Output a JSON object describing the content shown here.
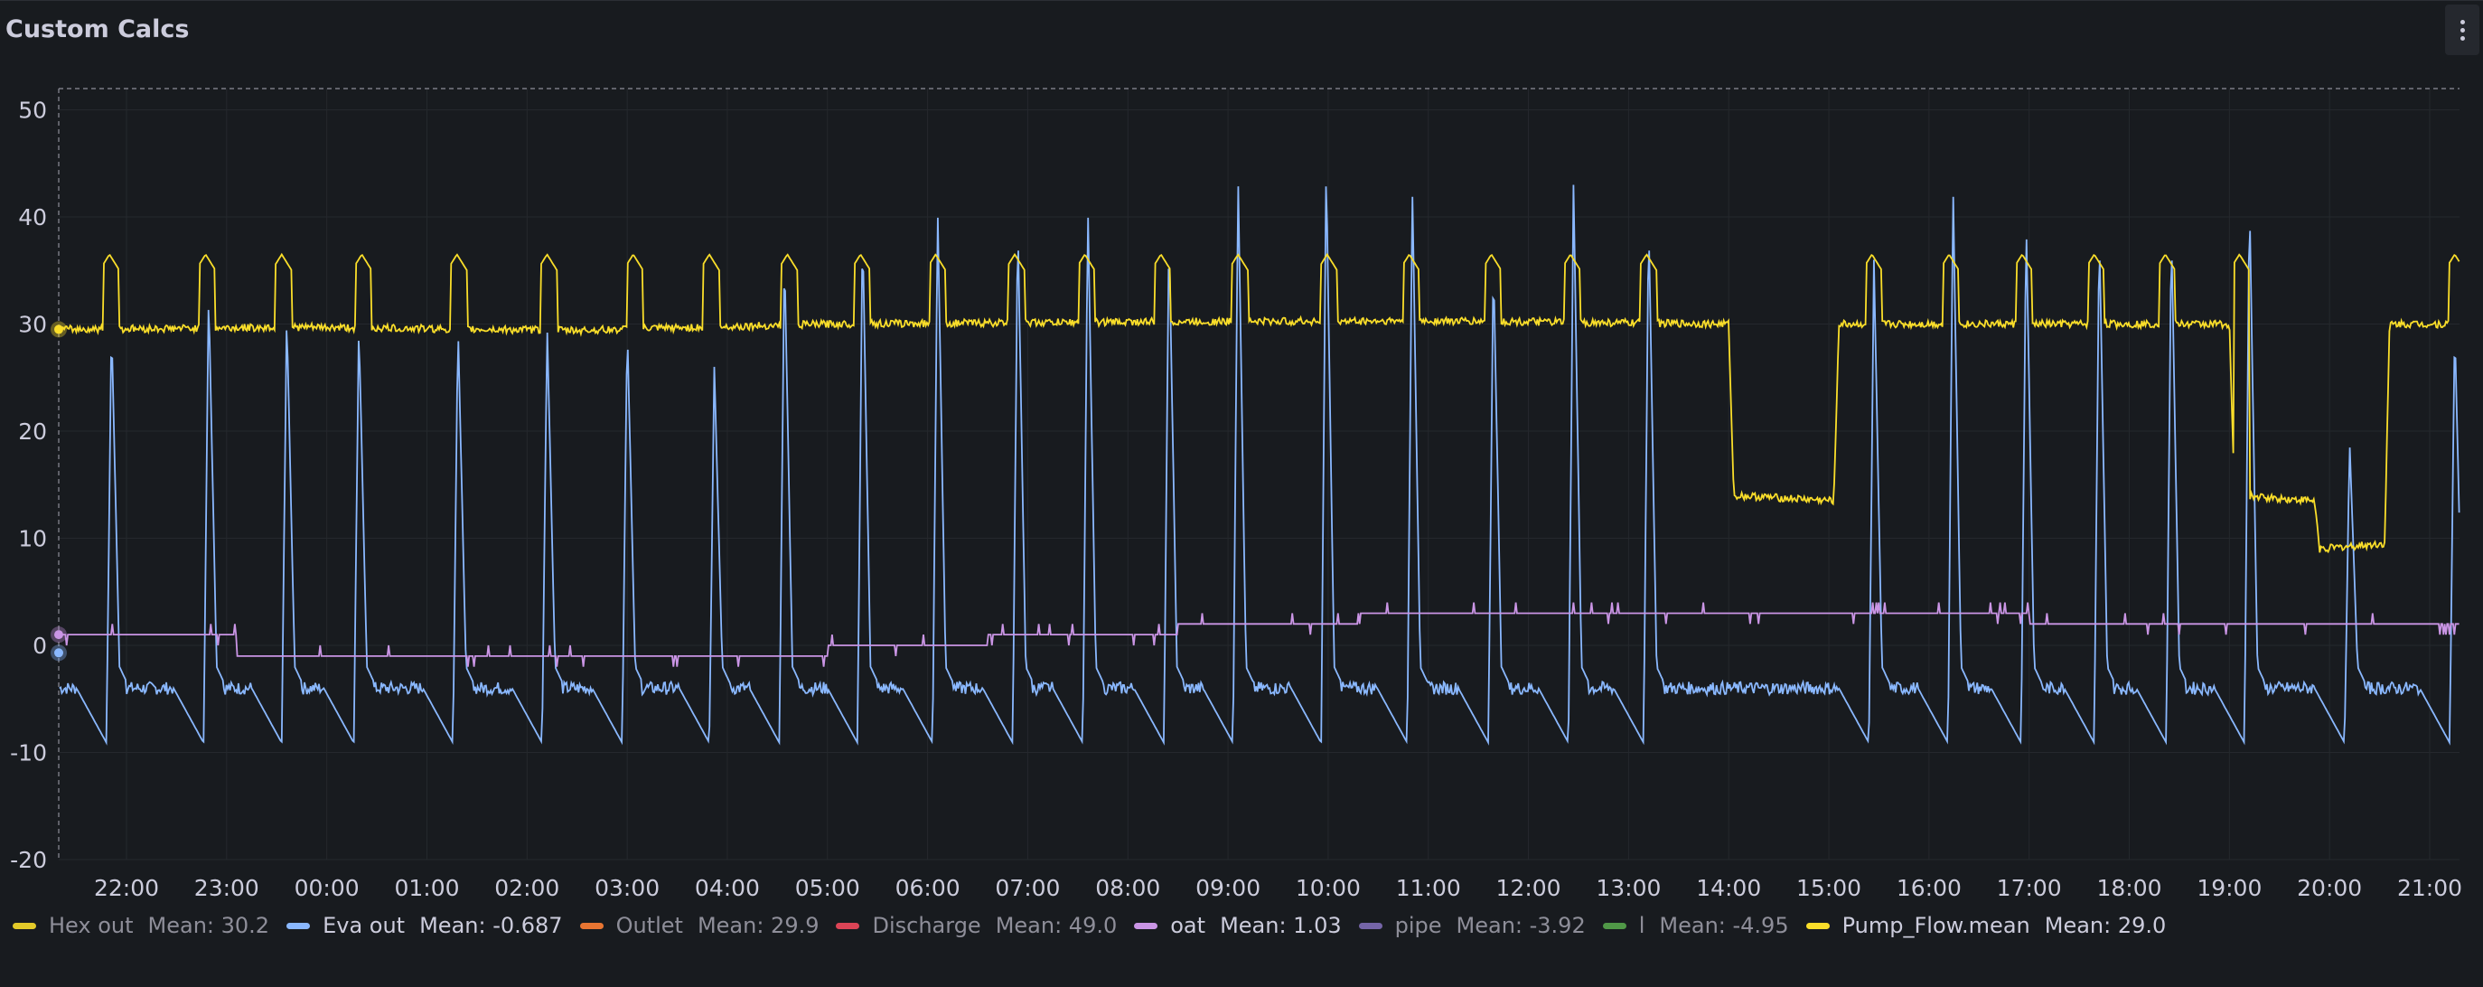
{
  "panel": {
    "title": "Custom Calcs"
  },
  "chart_data": {
    "type": "line",
    "title": "Custom Calcs",
    "xlabel": "",
    "ylabel": "",
    "x_ticks": [
      "22:00",
      "23:00",
      "00:00",
      "01:00",
      "02:00",
      "03:00",
      "04:00",
      "05:00",
      "06:00",
      "07:00",
      "08:00",
      "09:00",
      "10:00",
      "11:00",
      "12:00",
      "13:00",
      "14:00",
      "15:00",
      "16:00",
      "17:00",
      "18:00",
      "19:00",
      "20:00",
      "21:00"
    ],
    "y_ticks": [
      50,
      40,
      30,
      20,
      10,
      0,
      -10,
      -20
    ],
    "ylim": [
      -20,
      52
    ],
    "xlim_hours": [
      21.33,
      45.3
    ],
    "grid": true,
    "legend_position": "bottom",
    "legend": [
      {
        "name": "Hex out",
        "stat": "Mean: 30.2",
        "color": "#fade2a",
        "dim": true
      },
      {
        "name": "Eva out",
        "stat": "Mean: -0.687",
        "color": "#8ab8ff",
        "dim": false
      },
      {
        "name": "Outlet",
        "stat": "Mean: 29.9",
        "color": "#ff7f34",
        "dim": true
      },
      {
        "name": "Discharge",
        "stat": "Mean: 49.0",
        "color": "#f2495c",
        "dim": true
      },
      {
        "name": "oat",
        "stat": "Mean: 1.03",
        "color": "#ca95e5",
        "dim": false
      },
      {
        "name": "pipe",
        "stat": "Mean: -3.92",
        "color": "#806eb7",
        "dim": true
      },
      {
        "name": "l",
        "stat": "Mean: -4.95",
        "color": "#56a64b",
        "dim": true
      },
      {
        "name": "Pump_Flow.mean",
        "stat": "Mean: 29.0",
        "color": "#fade2a",
        "dim": false
      }
    ],
    "series": [
      {
        "name": "Pump_Flow.mean",
        "color": "#fade2a",
        "baseline": [
          {
            "x": 21.33,
            "y": 29.5
          },
          {
            "x": 23.8,
            "y": 29.7
          },
          {
            "x": 26.5,
            "y": 29.4
          },
          {
            "x": 29.0,
            "y": 30.0
          },
          {
            "x": 32.0,
            "y": 30.2
          },
          {
            "x": 35.0,
            "y": 30.3
          },
          {
            "x": 38.0,
            "y": 30.0
          },
          {
            "x": 38.05,
            "y": 14.0
          },
          {
            "x": 39.05,
            "y": 13.5
          },
          {
            "x": 39.1,
            "y": 30.0
          },
          {
            "x": 43.0,
            "y": 30.0
          },
          {
            "x": 43.05,
            "y": 14.0
          },
          {
            "x": 43.85,
            "y": 13.5
          },
          {
            "x": 43.9,
            "y": 9.0
          },
          {
            "x": 44.55,
            "y": 9.5
          },
          {
            "x": 44.6,
            "y": 30.0
          },
          {
            "x": 45.3,
            "y": 30.0
          }
        ],
        "peak_y": 36.5,
        "peaks": [
          21.83,
          22.79,
          23.55,
          24.35,
          25.3,
          26.2,
          27.06,
          27.82,
          28.6,
          29.33,
          30.08,
          30.87,
          31.57,
          32.33,
          33.1,
          33.99,
          34.81,
          35.63,
          36.42,
          37.18,
          39.43,
          40.2,
          40.93,
          41.65,
          42.36,
          43.1,
          45.25
        ]
      },
      {
        "name": "Eva out",
        "color": "#8ab8ff",
        "low_before": -9,
        "plateau_after": -4,
        "peaks": [
          {
            "x": 21.85,
            "y": 30
          },
          {
            "x": 22.82,
            "y": 33
          },
          {
            "x": 23.6,
            "y": 31
          },
          {
            "x": 24.32,
            "y": 30
          },
          {
            "x": 25.31,
            "y": 30
          },
          {
            "x": 26.2,
            "y": 30
          },
          {
            "x": 27.0,
            "y": 30
          },
          {
            "x": 27.87,
            "y": 26
          },
          {
            "x": 28.57,
            "y": 37
          },
          {
            "x": 29.35,
            "y": 39
          },
          {
            "x": 30.1,
            "y": 41
          },
          {
            "x": 30.9,
            "y": 40
          },
          {
            "x": 31.6,
            "y": 41
          },
          {
            "x": 32.41,
            "y": 39
          },
          {
            "x": 33.1,
            "y": 44
          },
          {
            "x": 33.98,
            "y": 45
          },
          {
            "x": 34.84,
            "y": 43
          },
          {
            "x": 35.65,
            "y": 36
          },
          {
            "x": 36.45,
            "y": 43
          },
          {
            "x": 37.2,
            "y": 40
          },
          {
            "x": 39.45,
            "y": 36
          },
          {
            "x": 40.24,
            "y": 43
          },
          {
            "x": 40.97,
            "y": 40
          },
          {
            "x": 41.7,
            "y": 39
          },
          {
            "x": 42.42,
            "y": 39
          },
          {
            "x": 43.2,
            "y": 42
          },
          {
            "x": 44.2,
            "y": 19
          },
          {
            "x": 45.25,
            "y": 30
          }
        ]
      },
      {
        "name": "oat",
        "color": "#ca95e5",
        "steps": [
          {
            "x": 21.33,
            "y": 1
          },
          {
            "x": 23.1,
            "y": -1
          },
          {
            "x": 27.0,
            "y": -1
          },
          {
            "x": 29.0,
            "y": 0
          },
          {
            "x": 30.6,
            "y": 1
          },
          {
            "x": 32.5,
            "y": 2
          },
          {
            "x": 34.3,
            "y": 3
          },
          {
            "x": 39.1,
            "y": 3
          },
          {
            "x": 41.0,
            "y": 2
          },
          {
            "x": 45.3,
            "y": 2
          }
        ]
      }
    ]
  },
  "footer": {
    "text": ""
  }
}
